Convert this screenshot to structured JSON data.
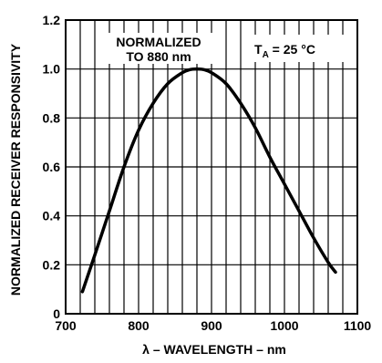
{
  "chart_data": {
    "type": "line",
    "title": "",
    "xlabel": "λ – WAVELENGTH – nm",
    "ylabel": "NORMALIZED RECEIVER RESPONSIVITY",
    "xlim": [
      700,
      1100
    ],
    "ylim": [
      0,
      1.2
    ],
    "x_ticks": [
      700,
      800,
      900,
      1000,
      1100
    ],
    "y_ticks": [
      0,
      0.2,
      0.4,
      0.6,
      0.8,
      1.0,
      1.2
    ],
    "x_tick_labels": [
      "700",
      "800",
      "900",
      "1000",
      "1100"
    ],
    "y_tick_labels": [
      "0",
      "0.2",
      "0.4",
      "0.6",
      "0.8",
      "1.0",
      "1.2"
    ],
    "grid": true,
    "x_grid_step": 20,
    "annotations": {
      "normalized_line1": "NORMALIZED",
      "normalized_line2": "TO 880 nm",
      "temp_prefix": "T",
      "temp_sub": "A",
      "temp_suffix": " = 25 °C"
    },
    "series": [
      {
        "x": [
          723,
          740,
          760,
          780,
          800,
          820,
          840,
          860,
          870,
          880,
          890,
          900,
          920,
          940,
          960,
          980,
          1000,
          1020,
          1040,
          1060,
          1070
        ],
        "y": [
          0.09,
          0.24,
          0.42,
          0.6,
          0.75,
          0.86,
          0.94,
          0.985,
          0.997,
          1.0,
          0.997,
          0.985,
          0.94,
          0.86,
          0.76,
          0.64,
          0.53,
          0.42,
          0.31,
          0.21,
          0.17
        ]
      }
    ]
  }
}
